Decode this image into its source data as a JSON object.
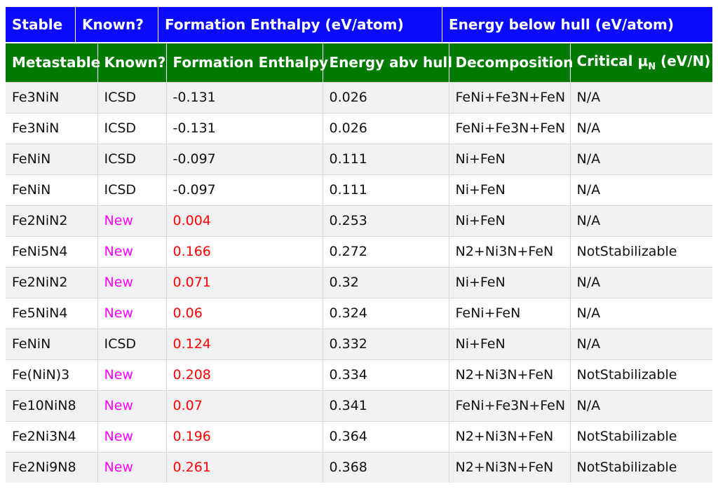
{
  "stable_header": {
    "stable": "Stable",
    "known": "Known?",
    "formation": "Formation Enthalpy (eV/atom)",
    "energy_below_hull": "Energy below hull (eV/atom)"
  },
  "metastable_header": {
    "metastable": "Metastable",
    "known": "Known?",
    "formation": "Formation Enthalpy",
    "energy_abv_hull": "Energy abv hull",
    "decomposition": "Decomposition",
    "critical_mu_prefix": "Critical μ",
    "critical_mu_sub": "N",
    "critical_mu_suffix": " (eV/N)"
  },
  "colors": {
    "stable_header_bg": "#0a0aff",
    "metastable_header_bg": "#007a00",
    "new_text": "#ff00ff",
    "positive_enthalpy_text": "#ff0000"
  },
  "rows": [
    {
      "material": "Fe3NiN",
      "known": "ICSD",
      "formation": "-0.131",
      "hull": "0.026",
      "decomposition": "FeNi+Fe3N+FeN",
      "critical": "N/A"
    },
    {
      "material": "Fe3NiN",
      "known": "ICSD",
      "formation": "-0.131",
      "hull": "0.026",
      "decomposition": "FeNi+Fe3N+FeN",
      "critical": "N/A"
    },
    {
      "material": "FeNiN",
      "known": "ICSD",
      "formation": "-0.097",
      "hull": "0.111",
      "decomposition": "Ni+FeN",
      "critical": "N/A"
    },
    {
      "material": "FeNiN",
      "known": "ICSD",
      "formation": "-0.097",
      "hull": "0.111",
      "decomposition": "Ni+FeN",
      "critical": "N/A"
    },
    {
      "material": "Fe2NiN2",
      "known": "New",
      "formation": "0.004",
      "hull": "0.253",
      "decomposition": "Ni+FeN",
      "critical": "N/A"
    },
    {
      "material": "FeNi5N4",
      "known": "New",
      "formation": "0.166",
      "hull": "0.272",
      "decomposition": "N2+Ni3N+FeN",
      "critical": "NotStabilizable"
    },
    {
      "material": "Fe2NiN2",
      "known": "New",
      "formation": "0.071",
      "hull": "0.32",
      "decomposition": "Ni+FeN",
      "critical": "N/A"
    },
    {
      "material": "Fe5NiN4",
      "known": "New",
      "formation": "0.06",
      "hull": "0.324",
      "decomposition": "FeNi+FeN",
      "critical": "N/A"
    },
    {
      "material": "FeNiN",
      "known": "ICSD",
      "formation": "0.124",
      "hull": "0.332",
      "decomposition": "Ni+FeN",
      "critical": "N/A"
    },
    {
      "material": "Fe(NiN)3",
      "known": "New",
      "formation": "0.208",
      "hull": "0.334",
      "decomposition": "N2+Ni3N+FeN",
      "critical": "NotStabilizable"
    },
    {
      "material": "Fe10NiN8",
      "known": "New",
      "formation": "0.07",
      "hull": "0.341",
      "decomposition": "FeNi+Fe3N+FeN",
      "critical": "N/A"
    },
    {
      "material": "Fe2Ni3N4",
      "known": "New",
      "formation": "0.196",
      "hull": "0.364",
      "decomposition": "N2+Ni3N+FeN",
      "critical": "NotStabilizable"
    },
    {
      "material": "Fe2Ni9N8",
      "known": "New",
      "formation": "0.261",
      "hull": "0.368",
      "decomposition": "N2+Ni3N+FeN",
      "critical": "NotStabilizable"
    }
  ]
}
